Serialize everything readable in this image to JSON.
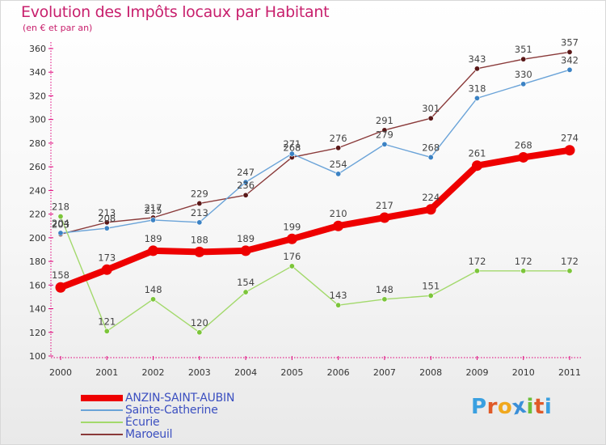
{
  "header": {
    "title": "Evolution des Impôts locaux par Habitant",
    "subtitle": "(en € et par an)"
  },
  "logo": {
    "text": "Proxiti",
    "letters": [
      "P",
      "r",
      "o",
      "x",
      "i",
      "t",
      "i"
    ],
    "colors": [
      "#3aa0e0",
      "#e05a28",
      "#f0a81e",
      "#3a8fd8",
      "#6cbf3a",
      "#e05a28",
      "#3aa0e0"
    ]
  },
  "chart_data": {
    "type": "line",
    "title": "Evolution des Impôts locaux par Habitant",
    "subtitle": "(en € et par an)",
    "xlabel": "",
    "ylabel": "",
    "x": [
      "2000",
      "2001",
      "2002",
      "2003",
      "2004",
      "2005",
      "2006",
      "2007",
      "2008",
      "2009",
      "2010",
      "2011"
    ],
    "ylim": [
      100,
      360
    ],
    "yticks": [
      100,
      120,
      140,
      160,
      180,
      200,
      220,
      240,
      260,
      280,
      300,
      320,
      340,
      360
    ],
    "grid": false,
    "legend_position": "bottom-left",
    "series": [
      {
        "name": "ANZIN-SAINT-AUBIN",
        "color": "#ee0000",
        "values": [
          158,
          173,
          189,
          188,
          189,
          199,
          210,
          217,
          224,
          261,
          268,
          274
        ],
        "labels": [
          "158",
          "173",
          "189",
          "188",
          "189",
          "199",
          "210",
          "217",
          "224",
          "261",
          "268",
          "274"
        ]
      },
      {
        "name": "Sainte-Catherine",
        "color": "#5b9bd5",
        "values": [
          204,
          208,
          215,
          213,
          247,
          271,
          254,
          279,
          268,
          318,
          330,
          342
        ],
        "labels": [
          "204",
          "208",
          "215",
          "213",
          "247",
          "271",
          "254",
          "279",
          "268",
          "318",
          "330",
          "342"
        ]
      },
      {
        "name": "Écurie",
        "color": "#8fd14f",
        "values": [
          218,
          121,
          148,
          120,
          154,
          176,
          143,
          148,
          151,
          172,
          172,
          172
        ],
        "labels": [
          "218",
          "121",
          "148",
          "120",
          "154",
          "176",
          "143",
          "148",
          "151",
          "172",
          "172",
          "172"
        ]
      },
      {
        "name": "Maroeuil",
        "color": "#6b1e1e",
        "values": [
          203,
          213,
          217,
          229,
          236,
          268,
          276,
          291,
          301,
          343,
          351,
          357
        ],
        "labels": [
          "203",
          "213",
          "217",
          "229",
          "236",
          "268",
          "276",
          "291",
          "301",
          "343",
          "351",
          "357"
        ]
      }
    ]
  }
}
